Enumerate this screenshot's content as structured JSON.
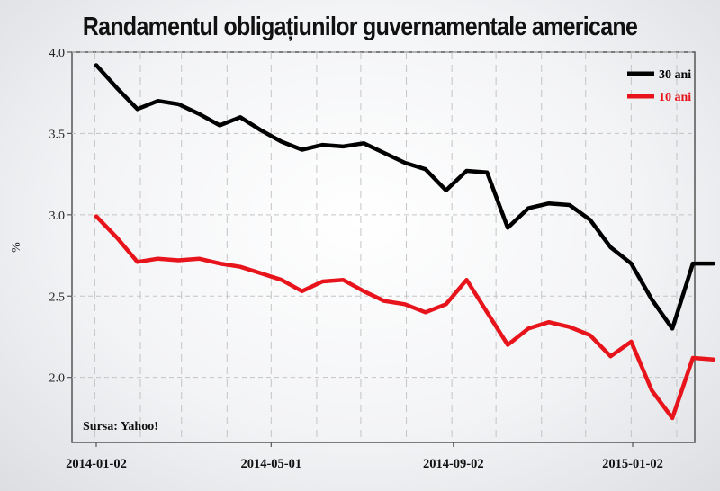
{
  "chart_data": {
    "type": "line",
    "title": "Randamentul obligațiunilor guvernamentale americane",
    "ylabel": "%",
    "xlabel": "",
    "ylim": [
      1.6,
      4.0
    ],
    "yticks": [
      "2.0",
      "2.5",
      "3.0",
      "3.5",
      "4.0"
    ],
    "xticks": [
      "2014-01-02",
      "2014-05-01",
      "2014-09-02",
      "2015-01-02"
    ],
    "x": [
      "2014-01-02",
      "2014-01-16",
      "2014-01-30",
      "2014-02-13",
      "2014-02-27",
      "2014-03-13",
      "2014-03-27",
      "2014-04-10",
      "2014-04-24",
      "2014-05-08",
      "2014-05-22",
      "2014-06-05",
      "2014-06-19",
      "2014-07-03",
      "2014-07-17",
      "2014-07-31",
      "2014-08-14",
      "2014-08-28",
      "2014-09-11",
      "2014-09-25",
      "2014-10-09",
      "2014-10-23",
      "2014-11-06",
      "2014-11-20",
      "2014-12-04",
      "2014-12-18",
      "2015-01-01",
      "2015-01-15",
      "2015-01-29",
      "2015-02-12",
      "2015-02-26"
    ],
    "series": [
      {
        "name": "30 ani",
        "color": "#000000",
        "values": [
          3.92,
          3.78,
          3.65,
          3.7,
          3.68,
          3.62,
          3.55,
          3.6,
          3.52,
          3.45,
          3.4,
          3.43,
          3.42,
          3.44,
          3.38,
          3.32,
          3.28,
          3.15,
          3.27,
          3.26,
          2.92,
          3.04,
          3.07,
          3.06,
          2.97,
          2.8,
          2.7,
          2.48,
          2.3,
          2.7,
          2.7
        ]
      },
      {
        "name": "10 ani",
        "color": "#e8141b",
        "values": [
          2.99,
          2.86,
          2.71,
          2.73,
          2.72,
          2.73,
          2.7,
          2.68,
          2.64,
          2.6,
          2.53,
          2.59,
          2.6,
          2.53,
          2.47,
          2.45,
          2.4,
          2.45,
          2.6,
          2.4,
          2.2,
          2.3,
          2.34,
          2.31,
          2.26,
          2.13,
          2.22,
          1.92,
          1.75,
          2.12,
          2.11
        ]
      }
    ],
    "legend": "top-right",
    "grid": true,
    "annotation": "Sursa: Yahoo!"
  }
}
